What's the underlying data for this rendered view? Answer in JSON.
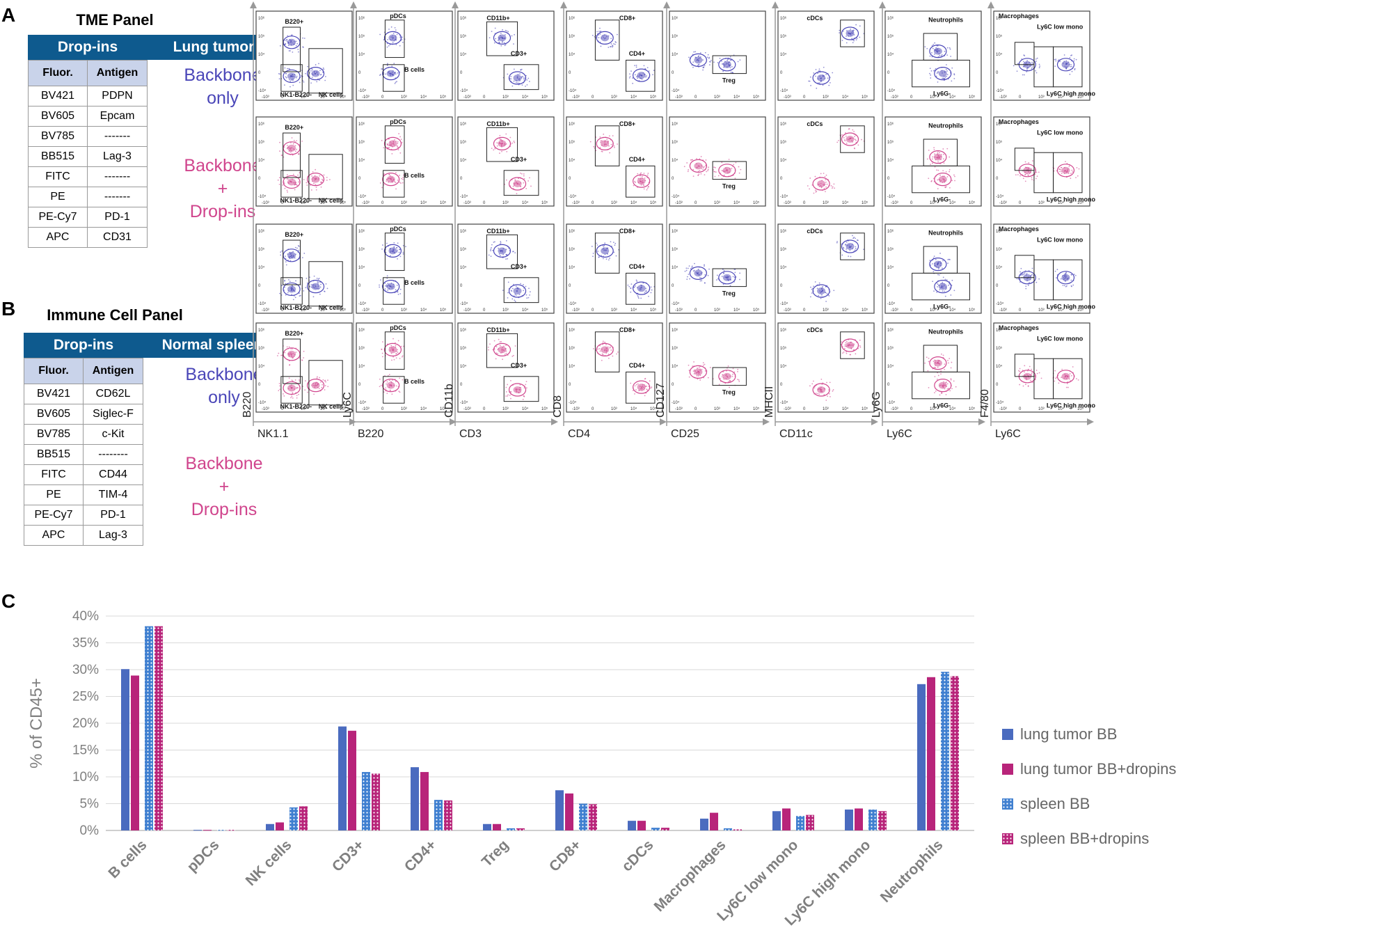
{
  "figure": {
    "labels": {
      "a": "A",
      "b": "B",
      "c": "C"
    },
    "colors": {
      "backbone": "#4a46b8",
      "dropins": "#d0458d",
      "header": "#0e5a8e",
      "table_head": "#c9d3ea"
    }
  },
  "panel_a": {
    "title": "TME Panel",
    "header_left": "Drop-ins",
    "header_right": "Lung tumor",
    "col1": "Fluor.",
    "col2": "Antigen",
    "rows": [
      [
        "BV421",
        "PDPN"
      ],
      [
        "BV605",
        "Epcam"
      ],
      [
        "BV785",
        "-------"
      ],
      [
        "BB515",
        "Lag-3"
      ],
      [
        "FITC",
        "-------"
      ],
      [
        "PE",
        "-------"
      ],
      [
        "PE-Cy7",
        "PD-1"
      ],
      [
        "APC",
        "CD31"
      ]
    ],
    "bb_only": [
      "Backbone",
      "only"
    ],
    "bb_drop": [
      "Backbone",
      "+",
      "Drop-ins"
    ]
  },
  "panel_b": {
    "title": "Immune Cell Panel",
    "header_left": "Drop-ins",
    "header_right": "Normal spleen",
    "col1": "Fluor.",
    "col2": "Antigen",
    "rows": [
      [
        "BV421",
        "CD62L"
      ],
      [
        "BV605",
        "Siglec-F"
      ],
      [
        "BV785",
        "c-Kit"
      ],
      [
        "BB515",
        "--------"
      ],
      [
        "FITC",
        "CD44"
      ],
      [
        "PE",
        "TIM-4"
      ],
      [
        "PE-Cy7",
        "PD-1"
      ],
      [
        "APC",
        "Lag-3"
      ]
    ],
    "bb_only": [
      "Backbone",
      "only"
    ],
    "bb_drop": [
      "Backbone",
      "+",
      "Drop-ins"
    ]
  },
  "flow_plots": {
    "columns": [
      {
        "x": "NK1.1",
        "y": "B220",
        "gates": [
          "B220+",
          "NK1-B220-",
          "NK cells"
        ]
      },
      {
        "x": "B220",
        "y": "Ly6C",
        "gates": [
          "pDCs",
          "B cells"
        ]
      },
      {
        "x": "CD3",
        "y": "CD11b",
        "gates": [
          "CD11b+",
          "CD3+"
        ]
      },
      {
        "x": "CD4",
        "y": "CD8",
        "gates": [
          "CD8+",
          "CD4+"
        ]
      },
      {
        "x": "CD25",
        "y": "CD127",
        "gates": [
          "Treg"
        ]
      },
      {
        "x": "CD11c",
        "y": "MHCII",
        "gates": [
          "cDCs"
        ]
      },
      {
        "x": "Ly6C",
        "y": "Ly6G",
        "gates": [
          "Neutrophils",
          "Ly6G-"
        ]
      },
      {
        "x": "Ly6C",
        "y": "F4/80",
        "gates": [
          "Macrophages",
          "Ly6C low mono",
          "Ly6C high mono"
        ]
      }
    ],
    "tick_labels": {
      "x": [
        "-10³",
        "0",
        "10³",
        "10⁴",
        "10⁵"
      ],
      "y": [
        "10⁶",
        "10⁵",
        "10⁴",
        "0",
        "-10⁴"
      ]
    }
  },
  "chart_data": {
    "type": "bar",
    "title": "",
    "xlabel": "",
    "ylabel": "% of CD45+",
    "ylim": [
      0,
      40
    ],
    "yticks": [
      "0%",
      "5%",
      "10%",
      "15%",
      "20%",
      "25%",
      "30%",
      "35%",
      "40%"
    ],
    "categories": [
      "B cells",
      "pDCs",
      "NK cells",
      "CD3+",
      "CD4+",
      "Treg",
      "CD8+",
      "cDCs",
      "Macrophages",
      "Ly6C low mono",
      "Ly6C high mono",
      "Neutrophils"
    ],
    "series": [
      {
        "name": "lung tumor BB",
        "color": "#4a6bbf",
        "pattern": "solid",
        "values": [
          30.1,
          0.1,
          1.2,
          19.4,
          11.8,
          1.2,
          7.5,
          1.8,
          2.2,
          3.6,
          3.9,
          27.3
        ]
      },
      {
        "name": "lung tumor BB+dropins",
        "color": "#b8247a",
        "pattern": "solid",
        "values": [
          28.9,
          0.1,
          1.5,
          18.6,
          10.9,
          1.2,
          6.9,
          1.8,
          3.3,
          4.1,
          4.1,
          28.6
        ]
      },
      {
        "name": "spleen BB",
        "color": "#3f7fd0",
        "pattern": "dots",
        "values": [
          38.1,
          0.1,
          4.3,
          10.9,
          5.7,
          0.4,
          5.0,
          0.5,
          0.4,
          2.7,
          3.9,
          29.6
        ]
      },
      {
        "name": "spleen BB+dropins",
        "color": "#b8247a",
        "pattern": "dots",
        "values": [
          38.1,
          0.1,
          4.5,
          10.6,
          5.6,
          0.4,
          4.9,
          0.5,
          0.2,
          2.9,
          3.6,
          28.8
        ]
      }
    ]
  }
}
